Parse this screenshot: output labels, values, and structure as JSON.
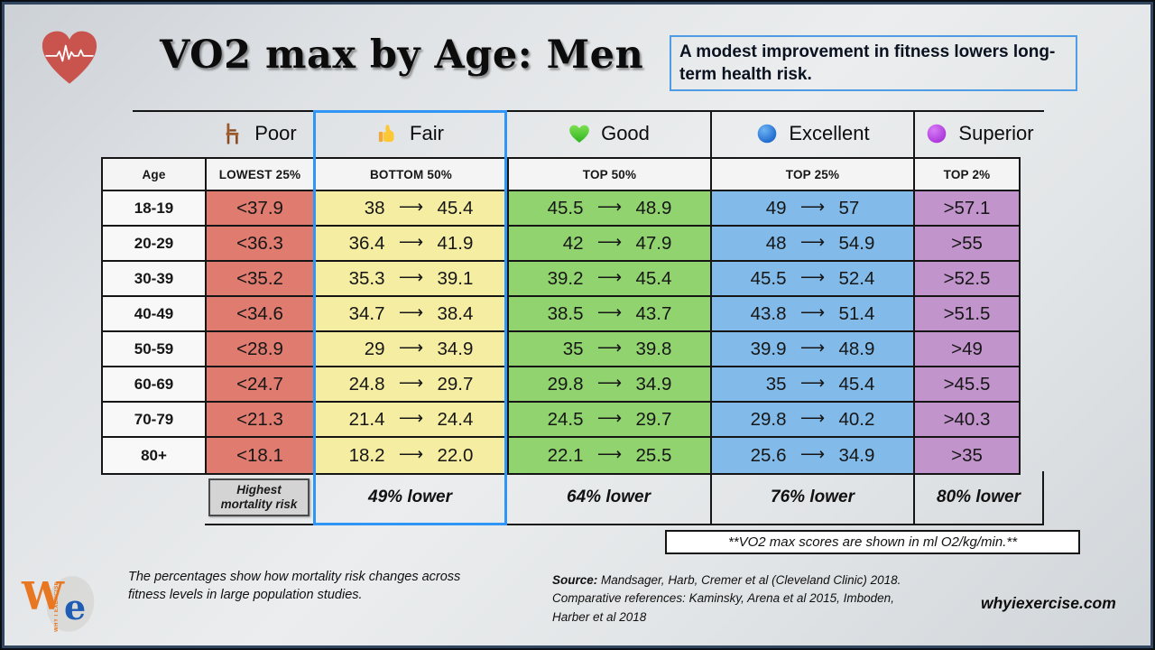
{
  "title": "VO2 max by Age: Men",
  "tip_box": "A modest improvement in fitness lowers long-term health risk.",
  "age_header": "Age",
  "categories": [
    {
      "label": "Poor",
      "icon": "chair-icon",
      "subheader": "LOWEST 25%",
      "color": "#e07b6f"
    },
    {
      "label": "Fair",
      "icon": "thumbs-up-icon",
      "subheader": "BOTTOM 50%",
      "color": "#f5eda2",
      "highlighted": true
    },
    {
      "label": "Good",
      "icon": "green-heart-icon",
      "subheader": "TOP 50%",
      "color": "#90d36f"
    },
    {
      "label": "Excellent",
      "icon": "blue-circle-icon",
      "subheader": "TOP 25%",
      "color": "#82bbe9"
    },
    {
      "label": "Superior",
      "icon": "purple-circle-icon",
      "subheader": "TOP 2%",
      "color": "#c294cc"
    }
  ],
  "chart_data": {
    "type": "table",
    "title": "VO2 max by Age: Men",
    "units": "ml O2/kg/min",
    "arrow_glyph": "⟶",
    "columns": [
      "Age",
      "Poor (LOWEST 25%)",
      "Fair (BOTTOM 50%)",
      "Good (TOP 50%)",
      "Excellent (TOP 25%)",
      "Superior (TOP 2%)"
    ],
    "rows": [
      {
        "age": "18-19",
        "poor": "<37.9",
        "fair": [
          "38",
          "45.4"
        ],
        "good": [
          "45.5",
          "48.9"
        ],
        "excellent": [
          "49",
          "57"
        ],
        "superior": ">57.1"
      },
      {
        "age": "20-29",
        "poor": "<36.3",
        "fair": [
          "36.4",
          "41.9"
        ],
        "good": [
          "42",
          "47.9"
        ],
        "excellent": [
          "48",
          "54.9"
        ],
        "superior": ">55"
      },
      {
        "age": "30-39",
        "poor": "<35.2",
        "fair": [
          "35.3",
          "39.1"
        ],
        "good": [
          "39.2",
          "45.4"
        ],
        "excellent": [
          "45.5",
          "52.4"
        ],
        "superior": ">52.5"
      },
      {
        "age": "40-49",
        "poor": "<34.6",
        "fair": [
          "34.7",
          "38.4"
        ],
        "good": [
          "38.5",
          "43.7"
        ],
        "excellent": [
          "43.8",
          "51.4"
        ],
        "superior": ">51.5"
      },
      {
        "age": "50-59",
        "poor": "<28.9",
        "fair": [
          "29",
          "34.9"
        ],
        "good": [
          "35",
          "39.8"
        ],
        "excellent": [
          "39.9",
          "48.9"
        ],
        "superior": ">49"
      },
      {
        "age": "60-69",
        "poor": "<24.7",
        "fair": [
          "24.8",
          "29.7"
        ],
        "good": [
          "29.8",
          "34.9"
        ],
        "excellent": [
          "35",
          "45.4"
        ],
        "superior": ">45.5"
      },
      {
        "age": "70-79",
        "poor": "<21.3",
        "fair": [
          "21.4",
          "24.4"
        ],
        "good": [
          "24.5",
          "29.7"
        ],
        "excellent": [
          "29.8",
          "40.2"
        ],
        "superior": ">40.3"
      },
      {
        "age": "80+",
        "poor": "<18.1",
        "fair": [
          "18.2",
          "22.0"
        ],
        "good": [
          "22.1",
          "25.5"
        ],
        "excellent": [
          "25.6",
          "34.9"
        ],
        "superior": ">35"
      }
    ],
    "mortality_summary": {
      "poor": "Highest mortality risk",
      "fair": "49% lower",
      "good": "64% lower",
      "excellent": "76% lower",
      "superior": "80% lower"
    }
  },
  "units_note": "**VO2 max scores are shown in ml O2/kg/min.**",
  "footnote": {
    "line1": "The percentages show how mortality risk changes across",
    "line2": "fitness levels in large population studies."
  },
  "source": {
    "label": "Source:",
    "line1": "  Mandsager, Harb, Cremer et al (Cleveland Clinic) 2018.",
    "line2": "Comparative references:  Kaminsky, Arena et al 2015, Imboden,",
    "line3": "Harber et al 2018"
  },
  "website": "whyiexercise.com",
  "logo": {
    "w": "W",
    "e": "e",
    "vertical": "WHY I EXERCISE"
  },
  "colors": {
    "poor_cell": "#e07b6f",
    "fair_cell": "#f5eda2",
    "good_cell": "#90d36f",
    "excellent_cell": "#82bbe9",
    "superior_cell": "#c294cc",
    "fair_highlight_border": "#2f96f6",
    "tip_box_border": "#4e9ce4",
    "heart_logo": "#c9544e",
    "brand_orange": "#e87722",
    "brand_blue": "#1f5cb4"
  }
}
